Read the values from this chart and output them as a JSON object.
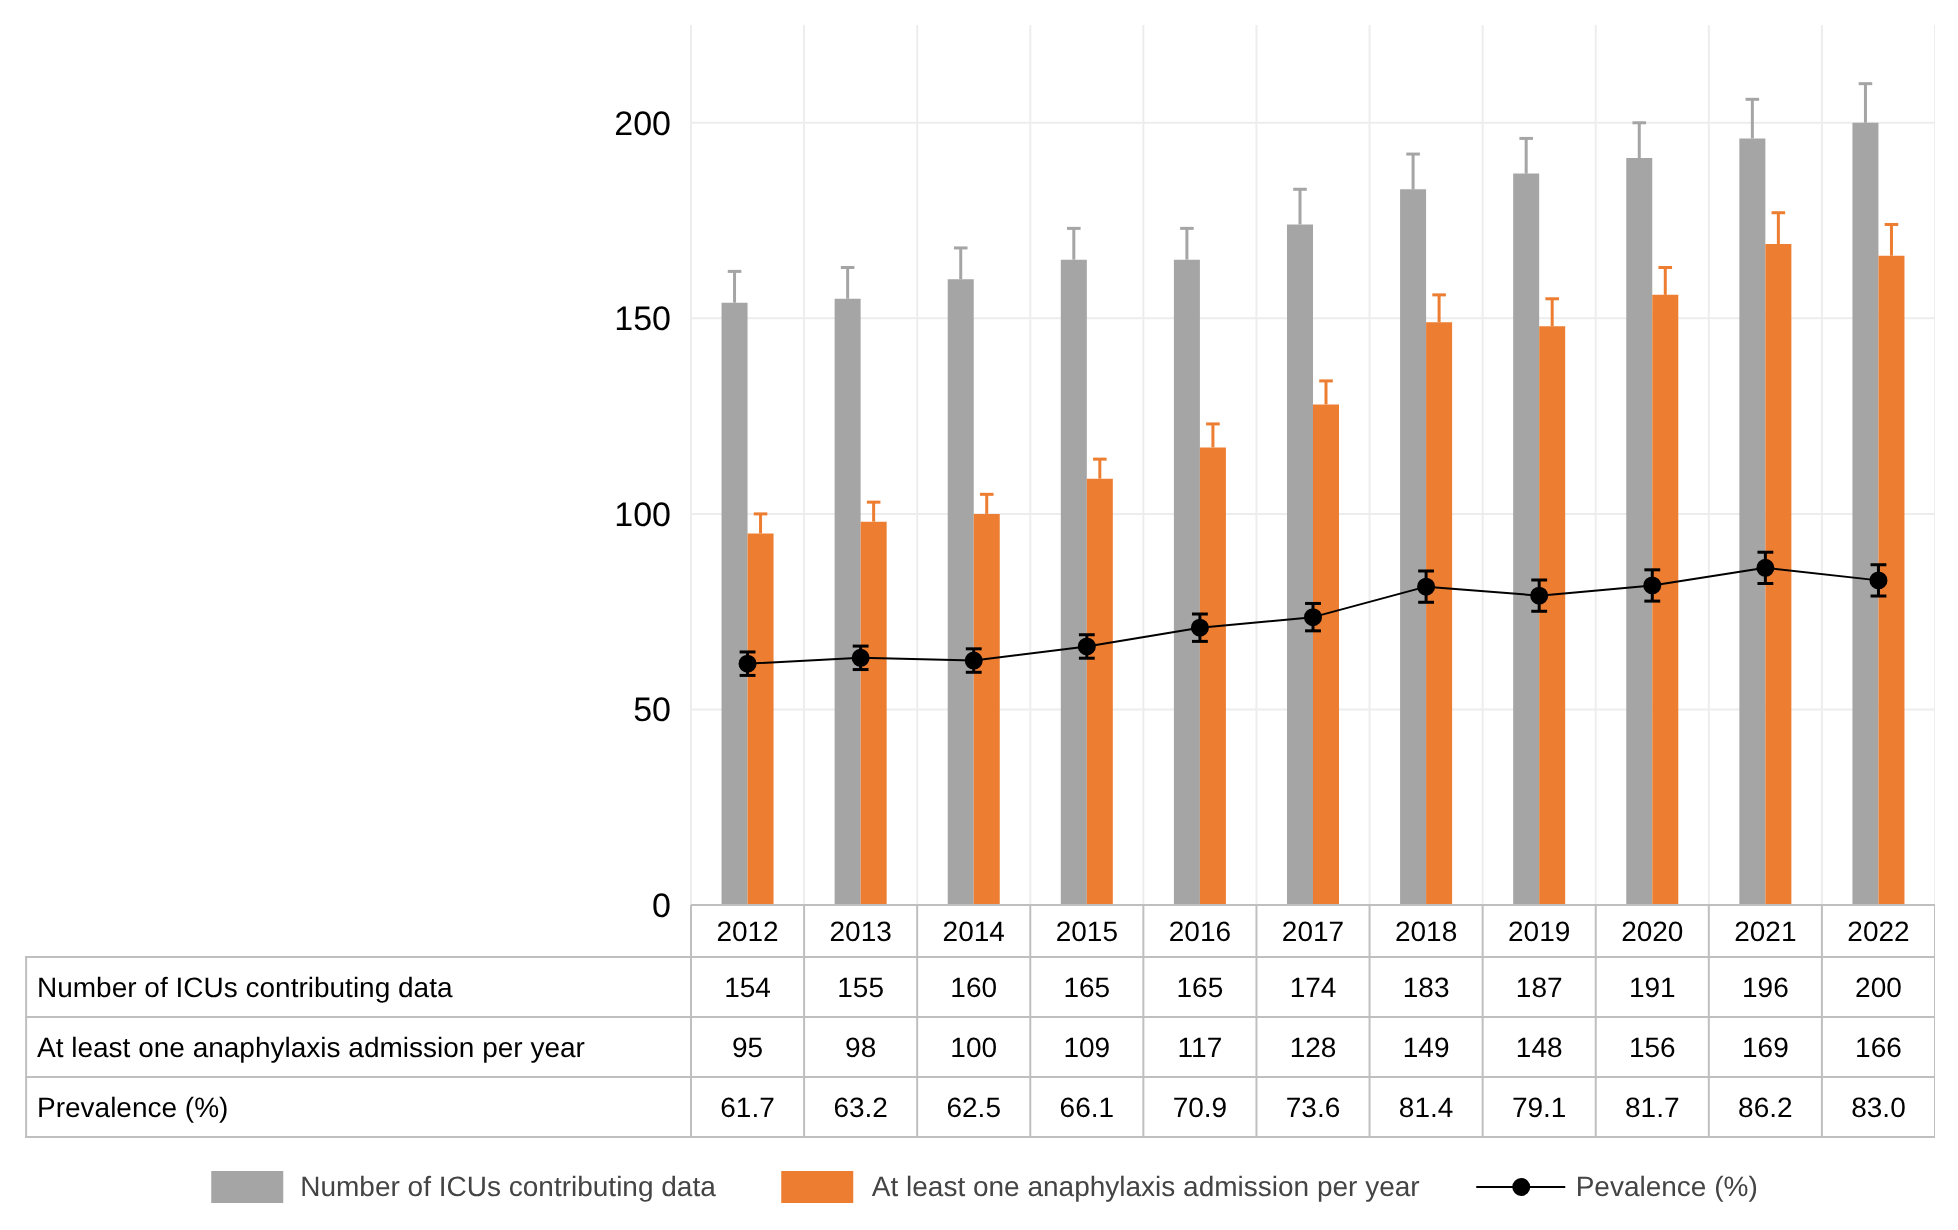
{
  "chart_data": {
    "type": "bar",
    "categories": [
      "2012",
      "2013",
      "2014",
      "2015",
      "2016",
      "2017",
      "2018",
      "2019",
      "2020",
      "2021",
      "2022"
    ],
    "ylim": [
      0,
      225
    ],
    "yticks": [
      0,
      50,
      100,
      150,
      200
    ],
    "grid": true,
    "legend": "bottom",
    "marker": "circle",
    "line_style": "solid",
    "annotations": [
      "Number of ICUs contributing data",
      "At least one anaphylaxis admission per year",
      "Prevalence (%)"
    ],
    "series": [
      {
        "name": "Number of ICUs contributing data",
        "color": "#a5a5a5",
        "values": [
          154,
          155,
          160,
          165,
          165,
          174,
          183,
          187,
          191,
          196,
          200
        ],
        "value_labels": [
          "154",
          "155",
          "160",
          "165",
          "165",
          "174",
          "183",
          "187",
          "191",
          "196",
          "200"
        ],
        "errors": [
          [
            154,
            162
          ],
          [
            155,
            163
          ],
          [
            160,
            168
          ],
          [
            165,
            173
          ],
          [
            165,
            173
          ],
          [
            174,
            183
          ],
          [
            183,
            192
          ],
          [
            187,
            196
          ],
          [
            191,
            200
          ],
          [
            196,
            206
          ],
          [
            200,
            210
          ]
        ]
      },
      {
        "name": "At least one anaphylaxis admission per year",
        "color": "#ed7d31",
        "values": [
          95,
          98,
          100,
          109,
          117,
          128,
          149,
          148,
          156,
          169,
          166
        ],
        "value_labels": [
          "95",
          "98",
          "100",
          "109",
          "117",
          "128",
          "149",
          "148",
          "156",
          "169",
          "166"
        ],
        "errors": [
          [
            95,
            100
          ],
          [
            98,
            103
          ],
          [
            100,
            105
          ],
          [
            109,
            114
          ],
          [
            117,
            123
          ],
          [
            128,
            134
          ],
          [
            149,
            156
          ],
          [
            148,
            155
          ],
          [
            156,
            163
          ],
          [
            169,
            177
          ],
          [
            166,
            174
          ]
        ]
      },
      {
        "name": "Pevalence (%)",
        "type": "line",
        "color": "#000000",
        "values": [
          61.7,
          63.2,
          62.5,
          66.1,
          70.9,
          73.6,
          81.4,
          79.1,
          81.7,
          86.2,
          83.0
        ],
        "value_labels": [
          "61.7",
          "63.2",
          "62.5",
          "66.1",
          "70.9",
          "73.6",
          "81.4",
          "79.1",
          "81.7",
          "86.2",
          "83.0"
        ],
        "errors": [
          3,
          3,
          3,
          3,
          3.5,
          3.5,
          4,
          4,
          4,
          4,
          4
        ]
      }
    ]
  }
}
